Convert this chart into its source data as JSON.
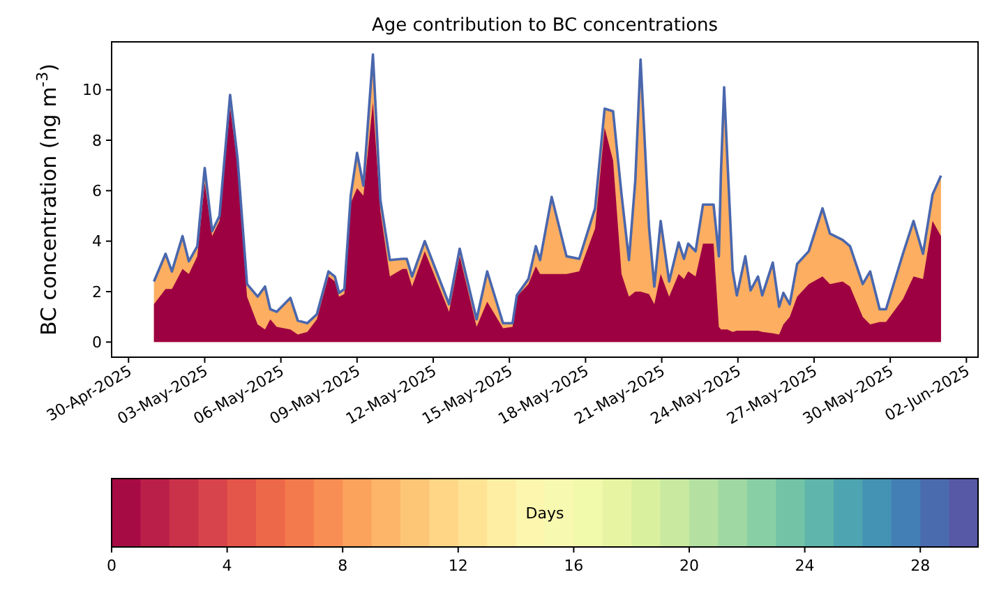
{
  "chart_data": {
    "type": "area",
    "title": "Age contribution to BC concentrations",
    "ylabel": "BC concentration (ng m$^{-3}$)",
    "clabel": "Days",
    "x": [
      "2025-05-01T00:00",
      "2025-05-01T11:00",
      "2025-05-01T17:00",
      "2025-05-02T03:00",
      "2025-05-02T09:00",
      "2025-05-02T17:00",
      "2025-05-03T00:00",
      "2025-05-03T07:00",
      "2025-05-03T14:00",
      "2025-05-04T00:00",
      "2025-05-04T07:00",
      "2025-05-04T16:00",
      "2025-05-05T02:00",
      "2025-05-05T09:00",
      "2025-05-05T14:00",
      "2025-05-05T20:00",
      "2025-05-06T09:00",
      "2025-05-06T16:00",
      "2025-05-07T01:00",
      "2025-05-07T10:00",
      "2025-05-07T21:00",
      "2025-05-08T03:00",
      "2025-05-08T07:00",
      "2025-05-08T12:00",
      "2025-05-08T18:00",
      "2025-05-09T00:00",
      "2025-05-09T06:00",
      "2025-05-09T15:00",
      "2025-05-09T22:00",
      "2025-05-10T07:00",
      "2025-05-10T19:00",
      "2025-05-10T23:00",
      "2025-05-11T04:00",
      "2025-05-11T16:00",
      "2025-05-12T15:00",
      "2025-05-13T01:00",
      "2025-05-13T17:00",
      "2025-05-14T03:00",
      "2025-05-14T18:00",
      "2025-05-15T03:00",
      "2025-05-15T07:00",
      "2025-05-15T18:00",
      "2025-05-16T01:00",
      "2025-05-16T05:00",
      "2025-05-16T16:00",
      "2025-05-17T06:00",
      "2025-05-17T18:00",
      "2025-05-18T09:00",
      "2025-05-18T18:00",
      "2025-05-19T02:00",
      "2025-05-19T10:00",
      "2025-05-19T17:00",
      "2025-05-19T23:00",
      "2025-05-20T04:00",
      "2025-05-20T12:00",
      "2025-05-20T17:00",
      "2025-05-20T23:00",
      "2025-05-21T07:00",
      "2025-05-21T16:00",
      "2025-05-21T21:00",
      "2025-05-22T01:00",
      "2025-05-22T08:00",
      "2025-05-22T15:00",
      "2025-05-23T01:00",
      "2025-05-23T06:00",
      "2025-05-23T08:00",
      "2025-05-23T11:00",
      "2025-05-23T14:00",
      "2025-05-23T19:00",
      "2025-05-23T23:00",
      "2025-05-24T07:00",
      "2025-05-24T12:00",
      "2025-05-24T19:00",
      "2025-05-24T23:00",
      "2025-05-25T09:00",
      "2025-05-25T15:00",
      "2025-05-25T19:00",
      "2025-05-26T01:00",
      "2025-05-26T08:00",
      "2025-05-26T19:00",
      "2025-05-27T08:00",
      "2025-05-27T15:00",
      "2025-05-28T03:00",
      "2025-05-28T10:00",
      "2025-05-28T22:00",
      "2025-05-29T05:00",
      "2025-05-29T14:00",
      "2025-05-29T20:00",
      "2025-05-30T12:00",
      "2025-05-30T22:00",
      "2025-05-31T07:00",
      "2025-05-31T16:00",
      "2025-06-01T00:00"
    ],
    "series": [
      {
        "color": "#fdae61",
        "values": [
          2.4,
          3.5,
          2.8,
          4.2,
          3.2,
          3.8,
          6.9,
          4.4,
          5.0,
          9.8,
          7.3,
          2.3,
          1.8,
          2.2,
          1.3,
          1.2,
          1.75,
          0.85,
          0.75,
          1.1,
          2.8,
          2.6,
          1.95,
          2.1,
          5.8,
          7.5,
          6.2,
          11.4,
          5.65,
          3.25,
          3.3,
          3.3,
          2.6,
          4.0,
          1.5,
          3.7,
          0.9,
          2.8,
          0.75,
          0.75,
          1.85,
          2.5,
          3.8,
          3.25,
          5.75,
          3.4,
          3.3,
          5.3,
          9.25,
          9.15,
          5.85,
          3.25,
          6.4,
          11.2,
          4.55,
          2.2,
          4.8,
          2.4,
          3.95,
          3.3,
          3.9,
          3.6,
          5.45,
          5.45,
          3.4,
          6.75,
          10.1,
          7.3,
          2.85,
          1.85,
          3.4,
          2.05,
          2.6,
          1.85,
          3.15,
          1.4,
          1.95,
          1.5,
          3.1,
          3.6,
          5.3,
          4.3,
          4.05,
          3.8,
          2.3,
          2.8,
          1.3,
          1.3,
          3.5,
          4.8,
          3.5,
          5.85,
          6.6
        ]
      },
      {
        "color": "#9e0142",
        "values": [
          1.5,
          2.1,
          2.1,
          2.9,
          2.7,
          3.4,
          6.3,
          4.2,
          4.8,
          9.3,
          7.0,
          1.8,
          0.7,
          0.5,
          0.9,
          0.6,
          0.5,
          0.3,
          0.4,
          0.9,
          2.6,
          2.4,
          1.8,
          1.9,
          5.5,
          6.1,
          5.8,
          9.5,
          5.2,
          2.6,
          2.9,
          2.9,
          2.2,
          3.6,
          1.2,
          3.4,
          0.6,
          1.6,
          0.55,
          0.6,
          1.8,
          2.3,
          3.0,
          2.7,
          2.7,
          2.7,
          2.8,
          4.5,
          8.5,
          7.2,
          2.7,
          1.8,
          2.0,
          2.0,
          1.9,
          1.5,
          2.7,
          1.8,
          2.7,
          2.5,
          2.8,
          2.6,
          3.9,
          3.9,
          0.6,
          0.5,
          0.5,
          0.5,
          0.4,
          0.45,
          0.45,
          0.45,
          0.45,
          0.4,
          0.35,
          0.3,
          0.7,
          1.0,
          1.8,
          2.3,
          2.6,
          2.3,
          2.4,
          2.2,
          1.0,
          0.7,
          0.8,
          0.8,
          1.7,
          2.6,
          2.5,
          4.8,
          4.2
        ]
      },
      {
        "type": "line",
        "color": "#4a67ad",
        "values": [
          2.4,
          3.5,
          2.8,
          4.2,
          3.2,
          3.8,
          6.9,
          4.4,
          5.0,
          9.8,
          7.3,
          2.3,
          1.8,
          2.2,
          1.3,
          1.2,
          1.75,
          0.85,
          0.75,
          1.1,
          2.8,
          2.6,
          1.95,
          2.1,
          5.8,
          7.5,
          6.2,
          11.4,
          5.65,
          3.25,
          3.3,
          3.3,
          2.6,
          4.0,
          1.5,
          3.7,
          0.9,
          2.8,
          0.75,
          0.75,
          1.85,
          2.5,
          3.8,
          3.25,
          5.75,
          3.4,
          3.3,
          5.3,
          9.25,
          9.15,
          5.85,
          3.25,
          6.4,
          11.2,
          4.55,
          2.2,
          4.8,
          2.4,
          3.95,
          3.3,
          3.9,
          3.6,
          5.45,
          5.45,
          3.4,
          6.75,
          10.1,
          7.3,
          2.85,
          1.85,
          3.4,
          2.05,
          2.6,
          1.85,
          3.15,
          1.4,
          1.95,
          1.5,
          3.1,
          3.6,
          5.3,
          4.3,
          4.05,
          3.8,
          2.3,
          2.8,
          1.3,
          1.3,
          3.5,
          4.8,
          3.5,
          5.85,
          6.6
        ]
      }
    ],
    "xlim": [
      "2025-04-29T08:00",
      "2025-06-02T11:00"
    ],
    "xticks": [
      {
        "value": "2025-04-30",
        "label": "30-Apr-2025"
      },
      {
        "value": "2025-05-03",
        "label": "03-May-2025"
      },
      {
        "value": "2025-05-06",
        "label": "06-May-2025"
      },
      {
        "value": "2025-05-09",
        "label": "09-May-2025"
      },
      {
        "value": "2025-05-12",
        "label": "12-May-2025"
      },
      {
        "value": "2025-05-15",
        "label": "15-May-2025"
      },
      {
        "value": "2025-05-18",
        "label": "18-May-2025"
      },
      {
        "value": "2025-05-21",
        "label": "21-May-2025"
      },
      {
        "value": "2025-05-24",
        "label": "24-May-2025"
      },
      {
        "value": "2025-05-27",
        "label": "27-May-2025"
      },
      {
        "value": "2025-05-30",
        "label": "30-May-2025"
      },
      {
        "value": "2025-06-02",
        "label": "02-Jun-2025"
      }
    ],
    "ylim": [
      -0.6,
      11.9
    ],
    "yticks": [
      0,
      2,
      4,
      6,
      8,
      10
    ],
    "clim": [
      0,
      30
    ],
    "cticks": [
      0,
      4,
      8,
      12,
      16,
      20,
      24,
      28
    ]
  }
}
